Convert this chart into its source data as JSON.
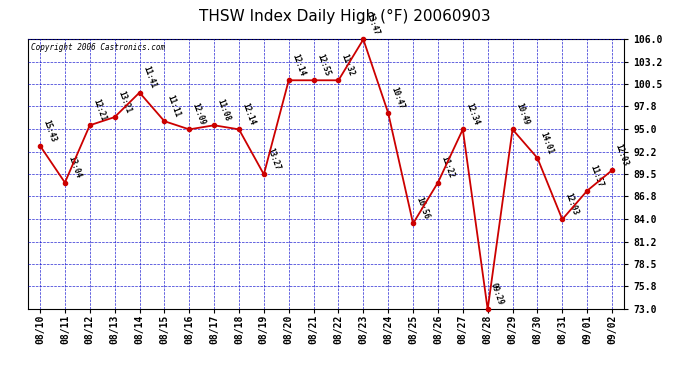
{
  "title": "THSW Index Daily High (°F) 20060903",
  "copyright": "Copyright 2006 Castronics.com",
  "dates": [
    "08/10",
    "08/11",
    "08/12",
    "08/13",
    "08/14",
    "08/15",
    "08/16",
    "08/17",
    "08/18",
    "08/19",
    "08/20",
    "08/21",
    "08/22",
    "08/23",
    "08/24",
    "08/25",
    "08/26",
    "08/27",
    "08/28",
    "08/29",
    "08/30",
    "08/31",
    "09/01",
    "09/02"
  ],
  "values": [
    93.0,
    88.5,
    95.5,
    96.5,
    99.5,
    96.0,
    95.0,
    95.5,
    95.0,
    89.5,
    101.0,
    101.0,
    101.0,
    106.0,
    97.0,
    83.5,
    88.5,
    95.0,
    73.0,
    95.0,
    91.5,
    84.0,
    87.5,
    90.0
  ],
  "times": [
    "15:43",
    "13:04",
    "12:21",
    "13:21",
    "11:41",
    "11:11",
    "12:09",
    "11:08",
    "12:14",
    "13:27",
    "12:14",
    "12:55",
    "11:32",
    "13:47",
    "10:47",
    "16:56",
    "11:22",
    "12:34",
    "09:29",
    "10:49",
    "14:01",
    "12:03",
    "11:57",
    "12:03"
  ],
  "ylim": [
    73.0,
    106.0
  ],
  "yticks": [
    73.0,
    75.8,
    78.5,
    81.2,
    84.0,
    86.8,
    89.5,
    92.2,
    95.0,
    97.8,
    100.5,
    103.2,
    106.0
  ],
  "line_color": "#cc0000",
  "grid_color": "#0000cc",
  "bg_color": "#ffffff"
}
